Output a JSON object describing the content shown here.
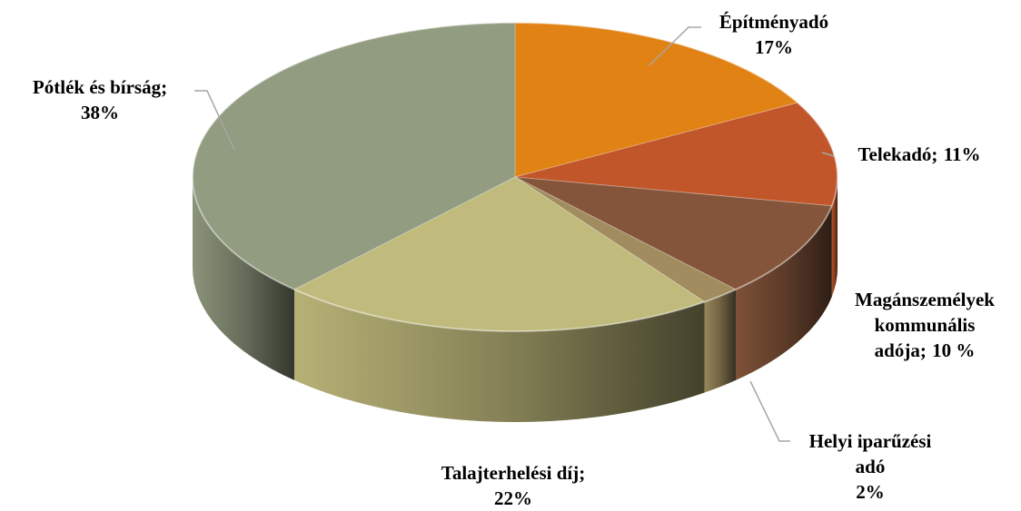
{
  "chart_data": {
    "type": "pie",
    "categories": [
      "Építményadó",
      "Telekadó;",
      "Magánszemélyek kommunális adója;",
      "Helyi iparűzési adó",
      "Talajterhelési díj;",
      "Pótlék és bírság;"
    ],
    "values": [
      17,
      11,
      10,
      2,
      22,
      38
    ],
    "value_labels": [
      "17%",
      "11%",
      "10 %",
      "2%",
      "22%",
      "38%"
    ],
    "colors": [
      "#e08214",
      "#c0562a",
      "#84553a",
      "#a08c5e",
      "#c0ba7c",
      "#929c80"
    ]
  }
}
